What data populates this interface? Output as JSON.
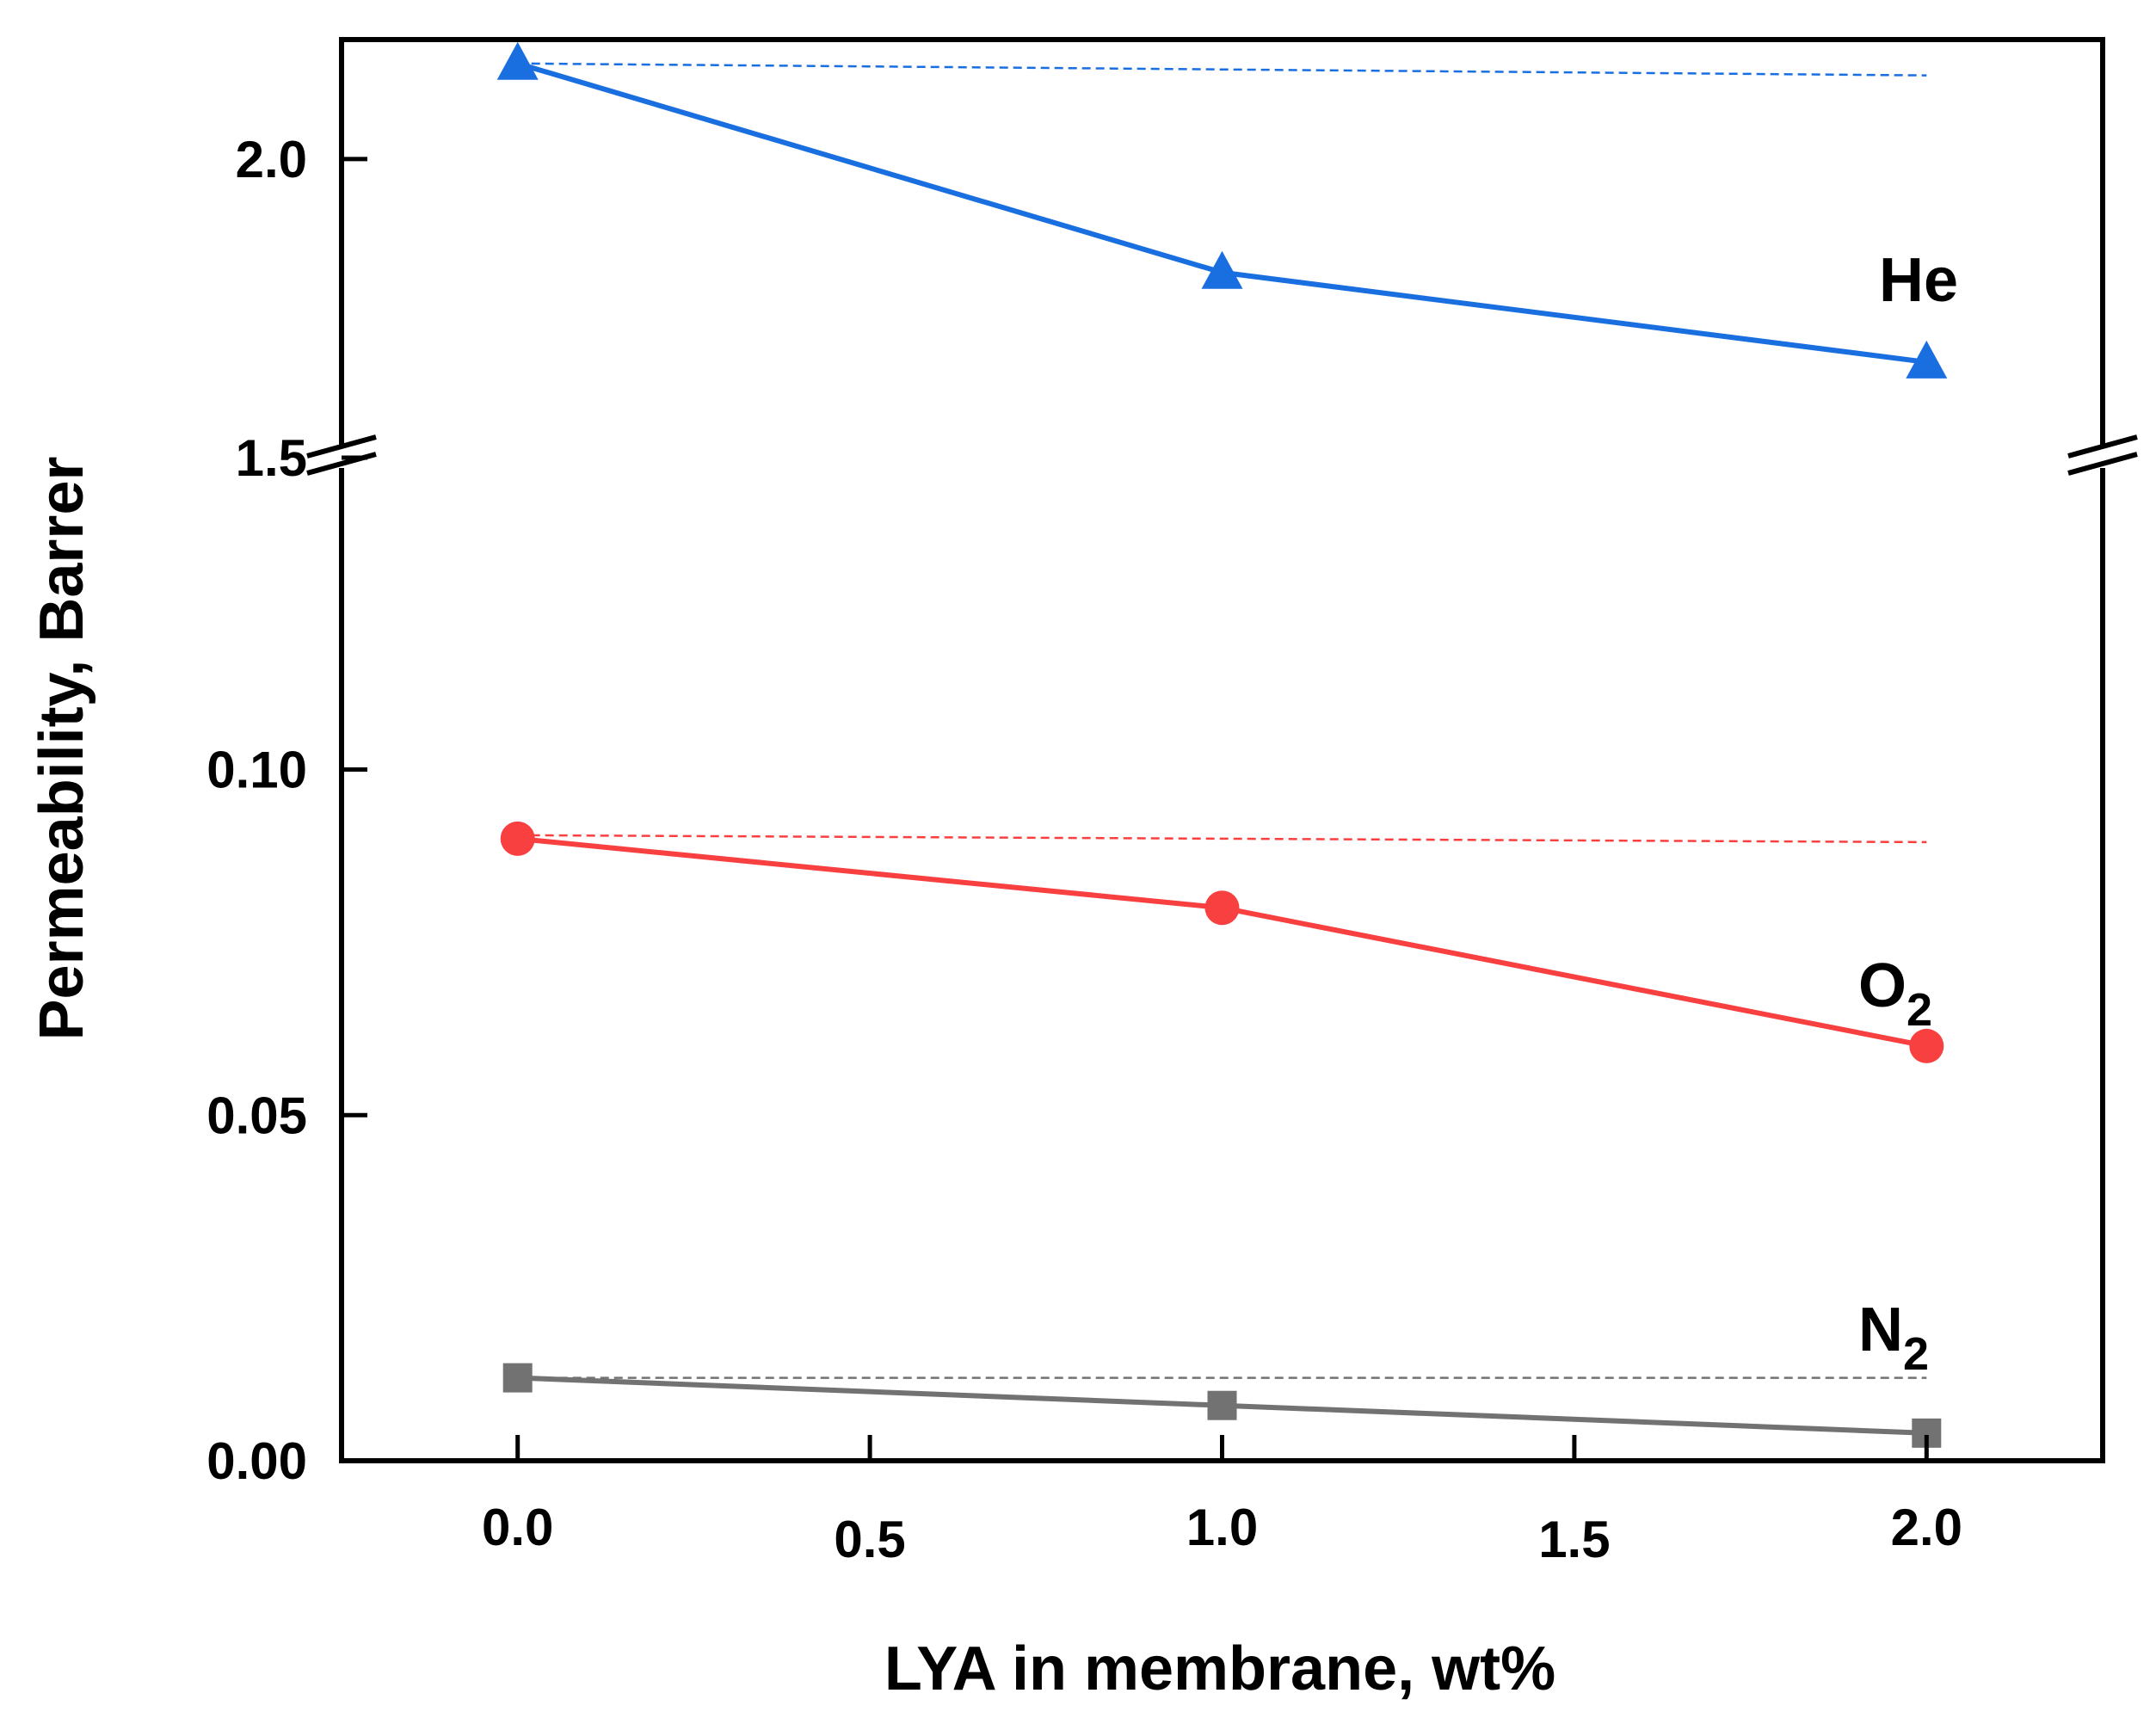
{
  "chart_data": {
    "type": "line",
    "xlabel": "LYA in membrane, wt%",
    "ylabel": "Permeability, Barrer",
    "xlim": [
      -0.25,
      2.25
    ],
    "xticks": [
      "0.0",
      "0.5",
      "1.0",
      "1.5",
      "2.0"
    ],
    "y_axis_broken": true,
    "upper_panel": {
      "ylim": [
        1.5,
        2.2
      ],
      "yticks": [
        "1.5",
        "2.0"
      ]
    },
    "lower_panel": {
      "ylim": [
        0.0,
        0.145
      ],
      "yticks": [
        "0.00",
        "0.05",
        "0.10"
      ]
    },
    "x": [
      0.0,
      1.0,
      2.0
    ],
    "series": [
      {
        "name": "He",
        "label": "He",
        "label_sub": "",
        "panel": "upper",
        "marker": "triangle",
        "color": "#1a6fe0",
        "values": [
          2.16,
          1.81,
          1.66
        ],
        "reference_line": [
          2.16,
          2.14
        ]
      },
      {
        "name": "O2",
        "label": "O",
        "label_sub": "2",
        "panel": "lower",
        "marker": "circle",
        "color": "#f84040",
        "values": [
          0.09,
          0.08,
          0.06
        ],
        "reference_line": [
          0.0905,
          0.0895
        ]
      },
      {
        "name": "N2",
        "label": "N",
        "label_sub": "2",
        "panel": "lower",
        "marker": "square",
        "color": "#727272",
        "values": [
          0.012,
          0.008,
          0.004
        ],
        "reference_line": [
          0.012,
          0.012
        ]
      }
    ]
  }
}
